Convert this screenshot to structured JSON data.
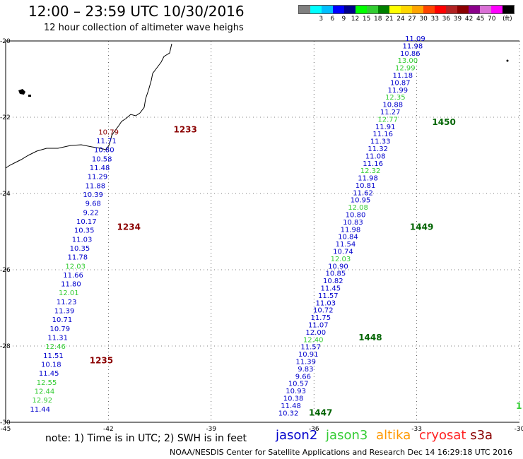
{
  "header": {
    "title": "12:00 – 23:59 UTC 10/30/2016",
    "subtitle": "12 hour collection of altimeter wave heighs"
  },
  "legend": {
    "colors": [
      "#808080",
      "#00ffff",
      "#00bfff",
      "#0000ff",
      "#00008b",
      "#00ff00",
      "#32cd32",
      "#008000",
      "#ffff00",
      "#ffd700",
      "#ffa500",
      "#ff4500",
      "#ff0000",
      "#b22222",
      "#8b0000",
      "#8b008b",
      "#da70d6",
      "#ff00ff",
      "#000000"
    ],
    "labels": [
      "3",
      "6",
      "9",
      "12",
      "15",
      "18",
      "21",
      "24",
      "27",
      "30",
      "33",
      "36",
      "39",
      "42",
      "45",
      "70",
      "(ft)"
    ]
  },
  "chart_data": {
    "type": "map",
    "lon_range": [
      -45,
      -30
    ],
    "lat_range": [
      -30,
      -20
    ],
    "x_ticks": [
      "-45",
      "-42",
      "-39",
      "-36",
      "-33",
      "-30"
    ],
    "y_ticks": [
      "-20",
      "-22",
      "-24",
      "-26",
      "-28",
      "-30"
    ],
    "colors": {
      "jason2": "#0000cc",
      "jason3": "#33cc33",
      "pass": "#8b0000",
      "pass_j3": "#006400"
    },
    "tracks": [
      {
        "name": "track-west",
        "start": [
          -41.7,
          -22.45
        ],
        "end": [
          -43.7,
          -29.72
        ],
        "labels": [
          {
            "v": "10.79",
            "c": "pass"
          },
          {
            "v": "11.71",
            "c": "jason2"
          },
          {
            "v": "10.80",
            "c": "jason2"
          },
          {
            "v": "10.58",
            "c": "jason2"
          },
          {
            "v": "11.48",
            "c": "jason2"
          },
          {
            "v": "11.29",
            "c": "jason2"
          },
          {
            "v": "11.88",
            "c": "jason2"
          },
          {
            "v": "10.39",
            "c": "jason2"
          },
          {
            "v": "9.68",
            "c": "jason2"
          },
          {
            "v": "9.22",
            "c": "jason2"
          },
          {
            "v": "10.17",
            "c": "jason2"
          },
          {
            "v": "10.35",
            "c": "jason2"
          },
          {
            "v": "11.03",
            "c": "jason2"
          },
          {
            "v": "10.35",
            "c": "jason2"
          },
          {
            "v": "11.78",
            "c": "jason2"
          },
          {
            "v": "12.03",
            "c": "jason3"
          },
          {
            "v": "11.66",
            "c": "jason2"
          },
          {
            "v": "11.80",
            "c": "jason2"
          },
          {
            "v": "12.01",
            "c": "jason3"
          },
          {
            "v": "11.23",
            "c": "jason2"
          },
          {
            "v": "11.39",
            "c": "jason2"
          },
          {
            "v": "10.71",
            "c": "jason2"
          },
          {
            "v": "10.79",
            "c": "jason2"
          },
          {
            "v": "11.31",
            "c": "jason2"
          },
          {
            "v": "12.46",
            "c": "jason3"
          },
          {
            "v": "11.51",
            "c": "jason2"
          },
          {
            "v": "10.18",
            "c": "jason2"
          },
          {
            "v": "11.45",
            "c": "jason2"
          },
          {
            "v": "12.55",
            "c": "jason3"
          },
          {
            "v": "12.44",
            "c": "jason3"
          },
          {
            "v": "12.92",
            "c": "jason3"
          },
          {
            "v": "11.44",
            "c": "jason2"
          }
        ]
      },
      {
        "name": "track-east",
        "start": [
          -32.75,
          -20.0
        ],
        "end": [
          -36.45,
          -29.82
        ],
        "labels": [
          {
            "v": "11.09",
            "c": "jason2"
          },
          {
            "v": "11.98",
            "c": "jason2"
          },
          {
            "v": "10.86",
            "c": "jason2"
          },
          {
            "v": "13.00",
            "c": "jason3"
          },
          {
            "v": "12.99",
            "c": "jason3"
          },
          {
            "v": "11.18",
            "c": "jason2"
          },
          {
            "v": "10.87",
            "c": "jason2"
          },
          {
            "v": "11.99",
            "c": "jason2"
          },
          {
            "v": "12.35",
            "c": "jason3"
          },
          {
            "v": "10.88",
            "c": "jason2"
          },
          {
            "v": "11.27",
            "c": "jason2"
          },
          {
            "v": "12.77",
            "c": "jason3"
          },
          {
            "v": "11.91",
            "c": "jason2"
          },
          {
            "v": "11.16",
            "c": "jason2"
          },
          {
            "v": "11.33",
            "c": "jason2"
          },
          {
            "v": "11.32",
            "c": "jason2"
          },
          {
            "v": "11.08",
            "c": "jason2"
          },
          {
            "v": "11.16",
            "c": "jason2"
          },
          {
            "v": "12.32",
            "c": "jason3"
          },
          {
            "v": "11.98",
            "c": "jason2"
          },
          {
            "v": "10.81",
            "c": "jason2"
          },
          {
            "v": "11.62",
            "c": "jason2"
          },
          {
            "v": "10.95",
            "c": "jason2"
          },
          {
            "v": "12.08",
            "c": "jason3"
          },
          {
            "v": "10.80",
            "c": "jason2"
          },
          {
            "v": "10.83",
            "c": "jason2"
          },
          {
            "v": "11.98",
            "c": "jason2"
          },
          {
            "v": "10.84",
            "c": "jason2"
          },
          {
            "v": "11.54",
            "c": "jason2"
          },
          {
            "v": "10.74",
            "c": "jason2"
          },
          {
            "v": "12.03",
            "c": "jason3"
          },
          {
            "v": "10.90",
            "c": "jason2"
          },
          {
            "v": "10.85",
            "c": "jason2"
          },
          {
            "v": "10.82",
            "c": "jason2"
          },
          {
            "v": "11.45",
            "c": "jason2"
          },
          {
            "v": "11.57",
            "c": "jason2"
          },
          {
            "v": "11.03",
            "c": "jason2"
          },
          {
            "v": "10.72",
            "c": "jason2"
          },
          {
            "v": "11.75",
            "c": "jason2"
          },
          {
            "v": "11.07",
            "c": "jason2"
          },
          {
            "v": "12.00",
            "c": "jason2"
          },
          {
            "v": "12.40",
            "c": "jason3"
          },
          {
            "v": "11.57",
            "c": "jason2"
          },
          {
            "v": "10.91",
            "c": "jason2"
          },
          {
            "v": "11.39",
            "c": "jason2"
          },
          {
            "v": "9.83",
            "c": "jason2"
          },
          {
            "v": "9.66",
            "c": "jason2"
          },
          {
            "v": "10.57",
            "c": "jason2"
          },
          {
            "v": "10.93",
            "c": "jason2"
          },
          {
            "v": "10.38",
            "c": "jason2"
          },
          {
            "v": "11.48",
            "c": "jason2"
          },
          {
            "v": "10.32",
            "c": "jason2"
          }
        ]
      }
    ],
    "pass_times": [
      {
        "v": "1233",
        "lon": -40.1,
        "lat": -22.4,
        "c": "pass"
      },
      {
        "v": "1234",
        "lon": -41.75,
        "lat": -24.95,
        "c": "pass"
      },
      {
        "v": "1235",
        "lon": -42.55,
        "lat": -28.45,
        "c": "pass"
      },
      {
        "v": "1450",
        "lon": -32.55,
        "lat": -22.2,
        "c": "pass_j3"
      },
      {
        "v": "1449",
        "lon": -33.2,
        "lat": -24.95,
        "c": "pass_j3"
      },
      {
        "v": "1448",
        "lon": -34.7,
        "lat": -27.85,
        "c": "pass_j3"
      },
      {
        "v": "1447",
        "lon": -36.15,
        "lat": -29.82,
        "c": "pass_j3"
      }
    ],
    "stray": [
      {
        "v": "1",
        "lon": -30.1,
        "lat": -29.65,
        "c": "jason3"
      }
    ]
  },
  "footer": {
    "note": "note:  1) Time is in UTC;  2) SWH is in feet",
    "sat_jason2": "jason2",
    "sat_jason3": "jason3",
    "sat_altika": "altika",
    "sat_cryosat": "cryosat",
    "sat_s3a": "s3a",
    "credit": "NOAA/NESDIS Center for Satellite Applications and Research     Dec 14 16:29:18 UTC 2016"
  }
}
